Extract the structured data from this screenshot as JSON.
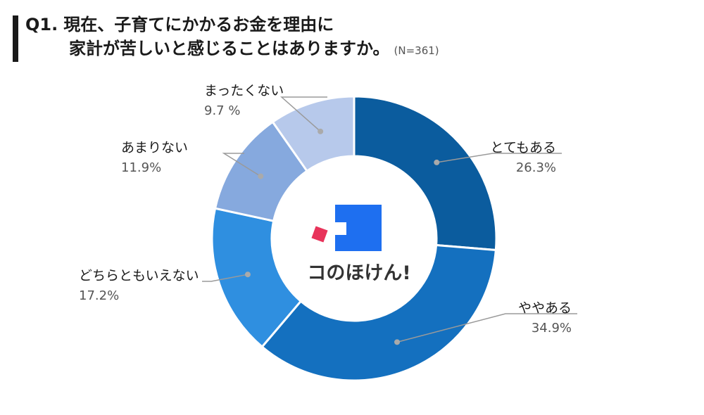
{
  "title": {
    "q": "Q1.",
    "line1": "現在、子育てにかかるお金を理由に",
    "line2": "家計が苦しいと感じることはありますか。",
    "n": "(N=361)"
  },
  "logo": {
    "text": "コのほけん!"
  },
  "colors": {
    "slices": [
      "#0b5c9e",
      "#1470bf",
      "#2f8fe0",
      "#86a9de",
      "#b7c9eb"
    ],
    "logo_blue": "#1e6ff0",
    "logo_red": "#e8335a"
  },
  "chart_data": {
    "type": "pie",
    "categories": [
      "とてもある",
      "ややある",
      "どちらともいえない",
      "あまりない",
      "まったくない"
    ],
    "values": [
      26.3,
      34.9,
      17.2,
      11.9,
      9.7
    ],
    "value_labels": [
      "26.3%",
      "34.9%",
      "17.2%",
      "11.9%",
      "9.7 %"
    ],
    "unit": "%"
  }
}
